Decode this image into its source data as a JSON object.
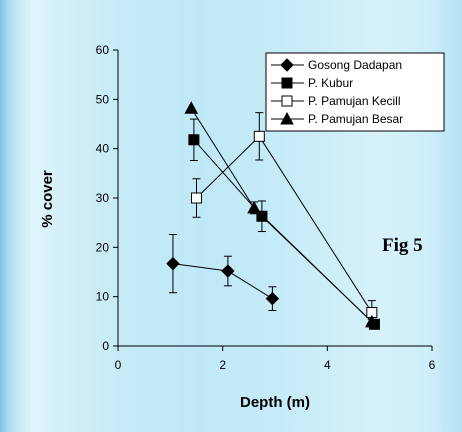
{
  "chart_data": {
    "type": "scatter",
    "xlabel": "Depth (m)",
    "ylabel": "% cover",
    "xlim": [
      0,
      6
    ],
    "ylim": [
      0,
      60
    ],
    "xticks": [
      "0",
      "2",
      "4",
      "6"
    ],
    "yticks": [
      "0",
      "10",
      "20",
      "30",
      "40",
      "50",
      "60"
    ],
    "annotation": "Fig 5",
    "legend_position": "top-right",
    "grid": false,
    "series": [
      {
        "name": "Gosong Dadapan",
        "marker": "diamond-filled",
        "points": [
          {
            "x": 1.05,
            "y": 16.7,
            "err": 5.9
          },
          {
            "x": 2.1,
            "y": 15.2,
            "err": 3.0
          },
          {
            "x": 2.95,
            "y": 9.6,
            "err": 2.4
          }
        ]
      },
      {
        "name": "P. Kubur",
        "marker": "square-filled",
        "points": [
          {
            "x": 1.45,
            "y": 41.8,
            "err": 4.2
          },
          {
            "x": 2.75,
            "y": 26.3,
            "err": 3.1
          },
          {
            "x": 4.9,
            "y": 4.4,
            "err": 0.7
          }
        ]
      },
      {
        "name": "P. Pamujan Kecill",
        "marker": "square-open",
        "points": [
          {
            "x": 1.5,
            "y": 30.0,
            "err": 3.9
          },
          {
            "x": 2.7,
            "y": 42.5,
            "err": 4.8
          },
          {
            "x": 4.85,
            "y": 6.8,
            "err": 2.4
          }
        ]
      },
      {
        "name": "P. Pamujan Besar",
        "marker": "triangle-filled",
        "points": [
          {
            "x": 1.4,
            "y": 48.2,
            "err": 0.0
          },
          {
            "x": 2.6,
            "y": 28.0,
            "err": 1.2
          },
          {
            "x": 4.85,
            "y": 4.9,
            "err": 0.5
          }
        ]
      }
    ]
  }
}
